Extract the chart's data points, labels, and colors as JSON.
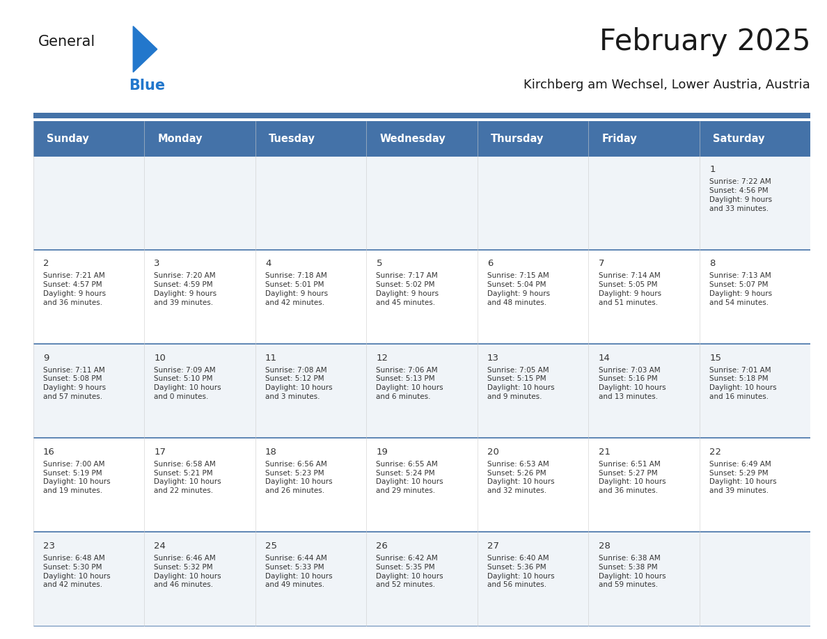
{
  "title": "February 2025",
  "subtitle": "Kirchberg am Wechsel, Lower Austria, Austria",
  "days_of_week": [
    "Sunday",
    "Monday",
    "Tuesday",
    "Wednesday",
    "Thursday",
    "Friday",
    "Saturday"
  ],
  "header_bg": "#4472a8",
  "header_text": "#ffffff",
  "row_bg_even": "#f0f4f8",
  "row_bg_odd": "#ffffff",
  "separator_color": "#4472a8",
  "day_number_color": "#333333",
  "cell_text_color": "#333333",
  "title_color": "#1a1a1a",
  "subtitle_color": "#1a1a1a",
  "logo_general_color": "#1a1a1a",
  "logo_blue_color": "#2277cc",
  "logo_triangle_color": "#2277cc",
  "calendar_data": [
    {
      "day": 1,
      "col": 6,
      "row": 0,
      "sunrise": "7:22 AM",
      "sunset": "4:56 PM",
      "daylight_h": "9 hours",
      "daylight_m": "and 33 minutes."
    },
    {
      "day": 2,
      "col": 0,
      "row": 1,
      "sunrise": "7:21 AM",
      "sunset": "4:57 PM",
      "daylight_h": "9 hours",
      "daylight_m": "and 36 minutes."
    },
    {
      "day": 3,
      "col": 1,
      "row": 1,
      "sunrise": "7:20 AM",
      "sunset": "4:59 PM",
      "daylight_h": "9 hours",
      "daylight_m": "and 39 minutes."
    },
    {
      "day": 4,
      "col": 2,
      "row": 1,
      "sunrise": "7:18 AM",
      "sunset": "5:01 PM",
      "daylight_h": "9 hours",
      "daylight_m": "and 42 minutes."
    },
    {
      "day": 5,
      "col": 3,
      "row": 1,
      "sunrise": "7:17 AM",
      "sunset": "5:02 PM",
      "daylight_h": "9 hours",
      "daylight_m": "and 45 minutes."
    },
    {
      "day": 6,
      "col": 4,
      "row": 1,
      "sunrise": "7:15 AM",
      "sunset": "5:04 PM",
      "daylight_h": "9 hours",
      "daylight_m": "and 48 minutes."
    },
    {
      "day": 7,
      "col": 5,
      "row": 1,
      "sunrise": "7:14 AM",
      "sunset": "5:05 PM",
      "daylight_h": "9 hours",
      "daylight_m": "and 51 minutes."
    },
    {
      "day": 8,
      "col": 6,
      "row": 1,
      "sunrise": "7:13 AM",
      "sunset": "5:07 PM",
      "daylight_h": "9 hours",
      "daylight_m": "and 54 minutes."
    },
    {
      "day": 9,
      "col": 0,
      "row": 2,
      "sunrise": "7:11 AM",
      "sunset": "5:08 PM",
      "daylight_h": "9 hours",
      "daylight_m": "and 57 minutes."
    },
    {
      "day": 10,
      "col": 1,
      "row": 2,
      "sunrise": "7:09 AM",
      "sunset": "5:10 PM",
      "daylight_h": "10 hours",
      "daylight_m": "and 0 minutes."
    },
    {
      "day": 11,
      "col": 2,
      "row": 2,
      "sunrise": "7:08 AM",
      "sunset": "5:12 PM",
      "daylight_h": "10 hours",
      "daylight_m": "and 3 minutes."
    },
    {
      "day": 12,
      "col": 3,
      "row": 2,
      "sunrise": "7:06 AM",
      "sunset": "5:13 PM",
      "daylight_h": "10 hours",
      "daylight_m": "and 6 minutes."
    },
    {
      "day": 13,
      "col": 4,
      "row": 2,
      "sunrise": "7:05 AM",
      "sunset": "5:15 PM",
      "daylight_h": "10 hours",
      "daylight_m": "and 9 minutes."
    },
    {
      "day": 14,
      "col": 5,
      "row": 2,
      "sunrise": "7:03 AM",
      "sunset": "5:16 PM",
      "daylight_h": "10 hours",
      "daylight_m": "and 13 minutes."
    },
    {
      "day": 15,
      "col": 6,
      "row": 2,
      "sunrise": "7:01 AM",
      "sunset": "5:18 PM",
      "daylight_h": "10 hours",
      "daylight_m": "and 16 minutes."
    },
    {
      "day": 16,
      "col": 0,
      "row": 3,
      "sunrise": "7:00 AM",
      "sunset": "5:19 PM",
      "daylight_h": "10 hours",
      "daylight_m": "and 19 minutes."
    },
    {
      "day": 17,
      "col": 1,
      "row": 3,
      "sunrise": "6:58 AM",
      "sunset": "5:21 PM",
      "daylight_h": "10 hours",
      "daylight_m": "and 22 minutes."
    },
    {
      "day": 18,
      "col": 2,
      "row": 3,
      "sunrise": "6:56 AM",
      "sunset": "5:23 PM",
      "daylight_h": "10 hours",
      "daylight_m": "and 26 minutes."
    },
    {
      "day": 19,
      "col": 3,
      "row": 3,
      "sunrise": "6:55 AM",
      "sunset": "5:24 PM",
      "daylight_h": "10 hours",
      "daylight_m": "and 29 minutes."
    },
    {
      "day": 20,
      "col": 4,
      "row": 3,
      "sunrise": "6:53 AM",
      "sunset": "5:26 PM",
      "daylight_h": "10 hours",
      "daylight_m": "and 32 minutes."
    },
    {
      "day": 21,
      "col": 5,
      "row": 3,
      "sunrise": "6:51 AM",
      "sunset": "5:27 PM",
      "daylight_h": "10 hours",
      "daylight_m": "and 36 minutes."
    },
    {
      "day": 22,
      "col": 6,
      "row": 3,
      "sunrise": "6:49 AM",
      "sunset": "5:29 PM",
      "daylight_h": "10 hours",
      "daylight_m": "and 39 minutes."
    },
    {
      "day": 23,
      "col": 0,
      "row": 4,
      "sunrise": "6:48 AM",
      "sunset": "5:30 PM",
      "daylight_h": "10 hours",
      "daylight_m": "and 42 minutes."
    },
    {
      "day": 24,
      "col": 1,
      "row": 4,
      "sunrise": "6:46 AM",
      "sunset": "5:32 PM",
      "daylight_h": "10 hours",
      "daylight_m": "and 46 minutes."
    },
    {
      "day": 25,
      "col": 2,
      "row": 4,
      "sunrise": "6:44 AM",
      "sunset": "5:33 PM",
      "daylight_h": "10 hours",
      "daylight_m": "and 49 minutes."
    },
    {
      "day": 26,
      "col": 3,
      "row": 4,
      "sunrise": "6:42 AM",
      "sunset": "5:35 PM",
      "daylight_h": "10 hours",
      "daylight_m": "and 52 minutes."
    },
    {
      "day": 27,
      "col": 4,
      "row": 4,
      "sunrise": "6:40 AM",
      "sunset": "5:36 PM",
      "daylight_h": "10 hours",
      "daylight_m": "and 56 minutes."
    },
    {
      "day": 28,
      "col": 5,
      "row": 4,
      "sunrise": "6:38 AM",
      "sunset": "5:38 PM",
      "daylight_h": "10 hours",
      "daylight_m": "and 59 minutes."
    }
  ]
}
